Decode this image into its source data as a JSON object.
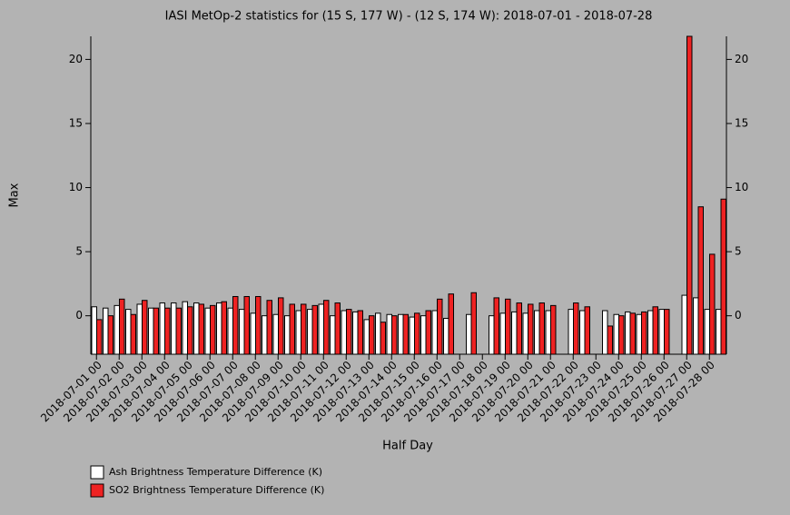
{
  "chart_data": {
    "type": "bar",
    "title": "IASI MetOp-2 statistics for (15 S, 177 W) - (12 S, 174 W): 2018-07-01 - 2018-07-28",
    "x_label": "Half Day",
    "y_label": "Max",
    "categories": [
      "2018-07-01 00",
      null,
      "2018-07-02 00",
      null,
      "2018-07-03 00",
      null,
      "2018-07-04 00",
      null,
      "2018-07-05 00",
      null,
      "2018-07-06 00",
      null,
      "2018-07-07 00",
      null,
      "2018-07-08 00",
      null,
      "2018-07-09 00",
      null,
      "2018-07-10 00",
      null,
      "2018-07-11 00",
      null,
      "2018-07-12 00",
      null,
      "2018-07-13 00",
      null,
      "2018-07-14 00",
      null,
      "2018-07-15 00",
      null,
      "2018-07-16 00",
      null,
      "2018-07-17 00",
      null,
      "2018-07-18 00",
      null,
      "2018-07-19 00",
      null,
      "2018-07-20 00",
      null,
      "2018-07-21 00",
      null,
      "2018-07-22 00",
      null,
      "2018-07-23 00",
      null,
      "2018-07-24 00",
      null,
      "2018-07-25 00",
      null,
      "2018-07-26 00",
      null,
      "2018-07-27 00",
      null,
      "2018-07-28 00",
      null
    ],
    "series": [
      {
        "name": "Ash Brightness Temperature Difference (K)",
        "color": "#ffffff",
        "values": [
          0.7,
          0.6,
          0.8,
          0.5,
          0.9,
          0.6,
          1.0,
          1.0,
          1.1,
          1.0,
          0.6,
          1.0,
          0.6,
          0.5,
          0.2,
          0.0,
          0.1,
          0.0,
          0.4,
          0.5,
          0.9,
          0.0,
          0.4,
          0.3,
          -0.3,
          0.2,
          0.1,
          0.1,
          -0.1,
          0.0,
          0.4,
          -0.2,
          null,
          0.1,
          null,
          0.0,
          0.2,
          0.3,
          0.2,
          0.4,
          0.4,
          null,
          0.5,
          0.4,
          null,
          0.4,
          0.1,
          0.3,
          0.1,
          0.4,
          0.5,
          null,
          1.6,
          1.4,
          0.5,
          0.5
        ]
      },
      {
        "name": "SO2 Brightness Temperature Difference (K)",
        "color": "#ee2222",
        "values": [
          -0.3,
          0.0,
          1.3,
          0.1,
          1.2,
          0.6,
          0.6,
          0.6,
          0.7,
          0.9,
          0.8,
          1.1,
          1.5,
          1.5,
          1.5,
          1.2,
          1.4,
          0.9,
          0.9,
          0.8,
          1.2,
          1.0,
          0.5,
          0.4,
          0.0,
          -0.5,
          0.0,
          0.1,
          0.2,
          0.4,
          1.3,
          1.7,
          null,
          1.8,
          null,
          1.4,
          1.3,
          1.0,
          0.9,
          1.0,
          0.8,
          null,
          1.0,
          0.7,
          null,
          -0.8,
          0.0,
          0.2,
          0.3,
          0.7,
          0.5,
          null,
          21.8,
          8.5,
          4.8,
          9.1
        ]
      }
    ],
    "ylim": [
      -3,
      21.8
    ],
    "yticks": [
      0,
      5,
      10,
      15,
      20
    ]
  }
}
